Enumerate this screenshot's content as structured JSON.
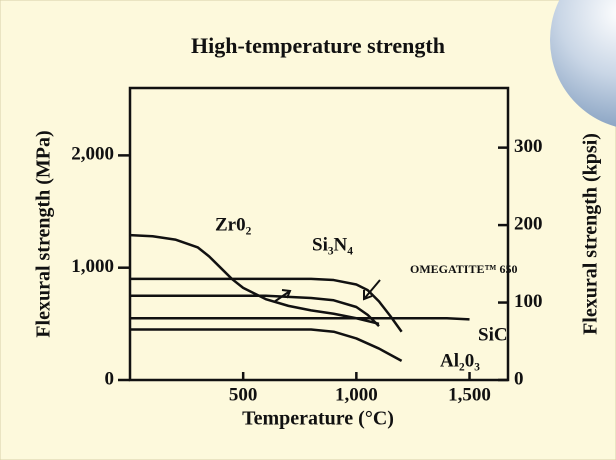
{
  "chart_data": {
    "type": "line",
    "title": "High-temperature strength",
    "xlabel": "Temperature (°C)",
    "ylabel": "Flexural strength (MPa)",
    "y2label": "Flexural strength (kpsi)",
    "xlim": [
      0,
      1670
    ],
    "xticks": [
      500,
      {
        "value": 1000,
        "label": "1,000"
      },
      {
        "value": 1500,
        "label": "1,500"
      }
    ],
    "ylim": [
      0,
      2600
    ],
    "yticks": [
      0,
      {
        "value": 1000,
        "label": "1,000"
      },
      {
        "value": 2000,
        "label": "2,000"
      }
    ],
    "y2lim": [
      0,
      377
    ],
    "y2ticks": [
      0,
      100,
      200,
      300
    ],
    "series": [
      {
        "name": "Zr0₂",
        "color": "#111111",
        "x": [
          0,
          100,
          200,
          300,
          350,
          400,
          450,
          500,
          600,
          700,
          800,
          900,
          1000,
          1100
        ],
        "values": [
          1290,
          1280,
          1250,
          1180,
          1100,
          1000,
          900,
          820,
          720,
          660,
          620,
          590,
          550,
          500
        ]
      },
      {
        "name": "Si₃N₄",
        "color": "#111111",
        "x": [
          0,
          600,
          700,
          800,
          900,
          1000,
          1050,
          1100
        ],
        "values": [
          750,
          750,
          740,
          730,
          710,
          650,
          580,
          480
        ]
      },
      {
        "name": "OMEGATITE™ 650",
        "color": "#111111",
        "x": [
          0,
          800,
          900,
          1000,
          1050,
          1100,
          1150,
          1200
        ],
        "values": [
          900,
          900,
          890,
          850,
          800,
          700,
          570,
          430
        ]
      },
      {
        "name": "SiC",
        "color": "#111111",
        "x": [
          0,
          1400,
          1500
        ],
        "values": [
          550,
          550,
          540
        ]
      },
      {
        "name": "Al₂0₃",
        "color": "#111111",
        "x": [
          0,
          800,
          900,
          1000,
          1100,
          1200
        ],
        "values": [
          450,
          450,
          430,
          370,
          280,
          170
        ]
      }
    ]
  }
}
